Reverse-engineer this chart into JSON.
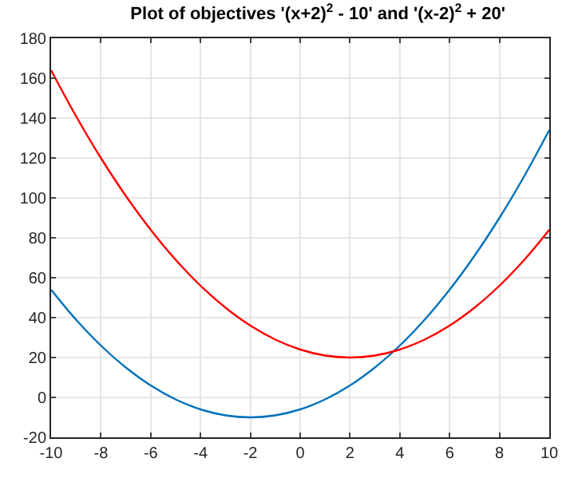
{
  "chart_data": {
    "type": "line",
    "title": "Plot of objectives '(x+2)$^{2}$ - 10' and '(x-2)$^{2}$ + 20'",
    "x": [
      -10,
      -9,
      -8,
      -7,
      -6,
      -5,
      -4,
      -3,
      -2,
      -1,
      0,
      1,
      2,
      3,
      4,
      5,
      6,
      7,
      8,
      9,
      10
    ],
    "series": [
      {
        "color": "#0072bd",
        "values": [
          54,
          39,
          26,
          15,
          6,
          -1,
          -6,
          -9,
          -10,
          -9,
          -6,
          -1,
          6,
          15,
          26,
          39,
          54,
          71,
          90,
          111,
          134
        ]
      },
      {
        "color": "#ff0000",
        "values": [
          164,
          141,
          120,
          101,
          84,
          69,
          56,
          45,
          36,
          29,
          24,
          21,
          20,
          21,
          24,
          29,
          36,
          45,
          56,
          69,
          84
        ]
      }
    ],
    "xlim": [
      -10,
      10
    ],
    "xticks": [
      -10,
      -8,
      -6,
      -4,
      -2,
      0,
      2,
      4,
      6,
      8,
      10
    ],
    "ylim": [
      -20,
      180
    ],
    "yticks": [
      -20,
      0,
      20,
      40,
      60,
      80,
      100,
      120,
      140,
      160,
      180
    ],
    "grid": true,
    "legend": false,
    "marker": "none",
    "line_style": "solid"
  }
}
